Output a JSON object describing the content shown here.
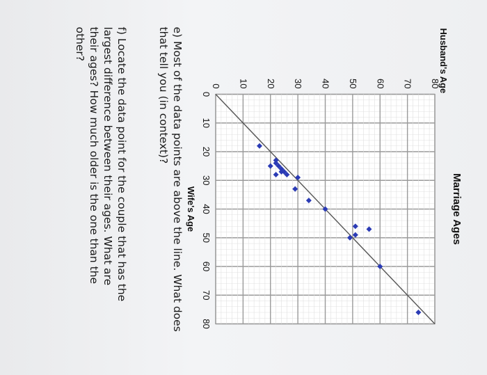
{
  "chart_data": {
    "type": "scatter",
    "title": "Marriage Ages",
    "xlabel": "Wife's Age",
    "ylabel": "Husband's Age",
    "xlim": [
      0,
      80
    ],
    "ylim": [
      0,
      80
    ],
    "xticks": [
      "0",
      "10",
      "20",
      "30",
      "40",
      "50",
      "60",
      "70",
      "80"
    ],
    "yticks": [
      "0",
      "10",
      "20",
      "30",
      "40",
      "50",
      "60",
      "70",
      "80"
    ],
    "grid": true,
    "reference_line": {
      "from": [
        0,
        0
      ],
      "to": [
        80,
        80
      ]
    },
    "points": [
      {
        "x": 18,
        "y": 16
      },
      {
        "x": 23,
        "y": 22
      },
      {
        "x": 24,
        "y": 22
      },
      {
        "x": 25,
        "y": 23
      },
      {
        "x": 25,
        "y": 20
      },
      {
        "x": 26,
        "y": 24
      },
      {
        "x": 27,
        "y": 24
      },
      {
        "x": 27,
        "y": 25
      },
      {
        "x": 28,
        "y": 26
      },
      {
        "x": 29,
        "y": 30
      },
      {
        "x": 28,
        "y": 22
      },
      {
        "x": 33,
        "y": 29
      },
      {
        "x": 37,
        "y": 34
      },
      {
        "x": 40,
        "y": 40
      },
      {
        "x": 46,
        "y": 51
      },
      {
        "x": 49,
        "y": 51
      },
      {
        "x": 50,
        "y": 49
      },
      {
        "x": 47,
        "y": 56
      },
      {
        "x": 60,
        "y": 60
      },
      {
        "x": 76,
        "y": 74
      }
    ],
    "point_color": "#2b3bb5",
    "line_color": "#555555"
  },
  "questions": {
    "e": "e) Most of the data points are above the line. What does that tell you (in context)?",
    "f": "f) Locate the data point for the couple that has the largest difference between their ages. What are their ages? How much older is the one than the other?"
  }
}
